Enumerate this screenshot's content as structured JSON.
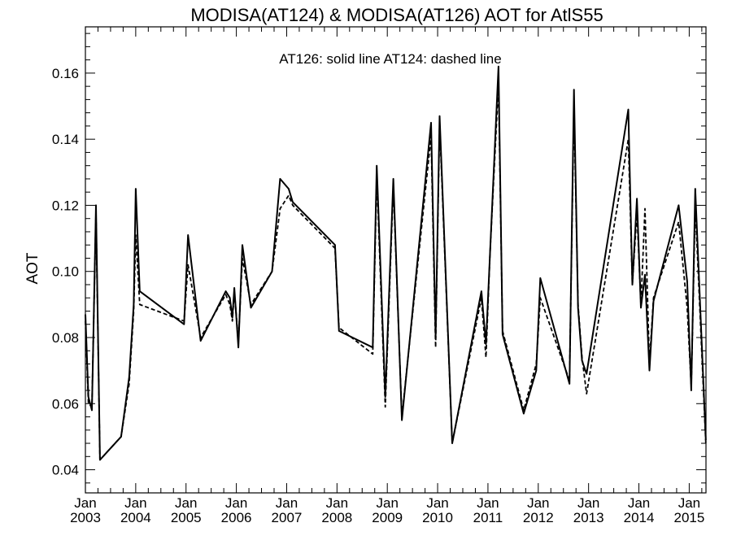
{
  "chart_data": {
    "type": "line",
    "title": "MODISA(AT124) & MODISA(AT126)  AOT for AtlS55",
    "annotation": "AT126: solid line   AT124: dashed line",
    "ylabel": "AOT",
    "xlabel": "",
    "xlim": [
      2003.0,
      2015.333
    ],
    "ylim": [
      0.033,
      0.174
    ],
    "yticks": [
      "0.04",
      "0.06",
      "0.08",
      "0.10",
      "0.12",
      "0.14",
      "0.16"
    ],
    "ytick_values": [
      0.04,
      0.06,
      0.08,
      0.1,
      0.12,
      0.14,
      0.16
    ],
    "xticks": [
      {
        "value": 2003,
        "month": "Jan",
        "year": "2003"
      },
      {
        "value": 2004,
        "month": "Jan",
        "year": "2004"
      },
      {
        "value": 2005,
        "month": "Jan",
        "year": "2005"
      },
      {
        "value": 2006,
        "month": "Jan",
        "year": "2006"
      },
      {
        "value": 2007,
        "month": "Jan",
        "year": "2007"
      },
      {
        "value": 2008,
        "month": "Jan",
        "year": "2008"
      },
      {
        "value": 2009,
        "month": "Jan",
        "year": "2009"
      },
      {
        "value": 2010,
        "month": "Jan",
        "year": "2010"
      },
      {
        "value": 2011,
        "month": "Jan",
        "year": "2011"
      },
      {
        "value": 2012,
        "month": "Jan",
        "year": "2012"
      },
      {
        "value": 2013,
        "month": "Jan",
        "year": "2013"
      },
      {
        "value": 2014,
        "month": "Jan",
        "year": "2014"
      },
      {
        "value": 2015,
        "month": "Jan",
        "year": "2015"
      }
    ],
    "grid": false,
    "series": [
      {
        "name": "AT126",
        "style": "solid",
        "color": "#000000",
        "points": [
          [
            2003.0,
            0.087
          ],
          [
            2003.06,
            0.062
          ],
          [
            2003.13,
            0.058
          ],
          [
            2003.21,
            0.12
          ],
          [
            2003.29,
            0.043
          ],
          [
            2003.71,
            0.05
          ],
          [
            2003.87,
            0.068
          ],
          [
            2003.96,
            0.09
          ],
          [
            2004.0,
            0.125
          ],
          [
            2004.08,
            0.094
          ],
          [
            2004.96,
            0.084
          ],
          [
            2005.04,
            0.111
          ],
          [
            2005.29,
            0.079
          ],
          [
            2005.79,
            0.094
          ],
          [
            2005.87,
            0.092
          ],
          [
            2005.92,
            0.086
          ],
          [
            2005.96,
            0.095
          ],
          [
            2006.04,
            0.077
          ],
          [
            2006.12,
            0.108
          ],
          [
            2006.29,
            0.089
          ],
          [
            2006.71,
            0.1
          ],
          [
            2006.87,
            0.128
          ],
          [
            2007.04,
            0.125
          ],
          [
            2007.12,
            0.121
          ],
          [
            2007.96,
            0.108
          ],
          [
            2008.04,
            0.082
          ],
          [
            2008.71,
            0.077
          ],
          [
            2008.79,
            0.132
          ],
          [
            2008.96,
            0.062
          ],
          [
            2009.12,
            0.128
          ],
          [
            2009.29,
            0.055
          ],
          [
            2009.87,
            0.145
          ],
          [
            2009.96,
            0.08
          ],
          [
            2010.04,
            0.147
          ],
          [
            2010.29,
            0.048
          ],
          [
            2010.87,
            0.094
          ],
          [
            2010.96,
            0.078
          ],
          [
            2011.04,
            0.105
          ],
          [
            2011.21,
            0.162
          ],
          [
            2011.29,
            0.081
          ],
          [
            2011.71,
            0.057
          ],
          [
            2011.96,
            0.07
          ],
          [
            2012.04,
            0.098
          ],
          [
            2012.62,
            0.066
          ],
          [
            2012.71,
            0.155
          ],
          [
            2012.79,
            0.089
          ],
          [
            2012.87,
            0.073
          ],
          [
            2012.96,
            0.069
          ],
          [
            2013.79,
            0.149
          ],
          [
            2013.87,
            0.096
          ],
          [
            2013.96,
            0.122
          ],
          [
            2014.04,
            0.089
          ],
          [
            2014.12,
            0.099
          ],
          [
            2014.21,
            0.07
          ],
          [
            2014.29,
            0.091
          ],
          [
            2014.79,
            0.12
          ],
          [
            2014.96,
            0.097
          ],
          [
            2015.04,
            0.064
          ],
          [
            2015.12,
            0.125
          ],
          [
            2015.33,
            0.049
          ]
        ]
      },
      {
        "name": "AT124",
        "style": "dashed",
        "color": "#000000",
        "points": [
          [
            2003.0,
            0.085
          ],
          [
            2003.06,
            0.06
          ],
          [
            2003.13,
            0.059
          ],
          [
            2003.21,
            0.118
          ],
          [
            2003.29,
            0.043
          ],
          [
            2003.71,
            0.05
          ],
          [
            2003.87,
            0.066
          ],
          [
            2003.96,
            0.088
          ],
          [
            2004.0,
            0.111
          ],
          [
            2004.08,
            0.09
          ],
          [
            2004.96,
            0.085
          ],
          [
            2005.04,
            0.102
          ],
          [
            2005.29,
            0.08
          ],
          [
            2005.79,
            0.093
          ],
          [
            2005.87,
            0.09
          ],
          [
            2005.92,
            0.085
          ],
          [
            2005.96,
            0.094
          ],
          [
            2006.04,
            0.079
          ],
          [
            2006.12,
            0.104
          ],
          [
            2006.29,
            0.09
          ],
          [
            2006.71,
            0.1
          ],
          [
            2006.87,
            0.119
          ],
          [
            2007.04,
            0.123
          ],
          [
            2007.12,
            0.12
          ],
          [
            2007.96,
            0.107
          ],
          [
            2008.04,
            0.083
          ],
          [
            2008.71,
            0.075
          ],
          [
            2008.79,
            0.129
          ],
          [
            2008.96,
            0.059
          ],
          [
            2009.12,
            0.126
          ],
          [
            2009.29,
            0.056
          ],
          [
            2009.87,
            0.141
          ],
          [
            2009.96,
            0.077
          ],
          [
            2010.04,
            0.145
          ],
          [
            2010.29,
            0.048
          ],
          [
            2010.87,
            0.092
          ],
          [
            2010.96,
            0.074
          ],
          [
            2011.04,
            0.105
          ],
          [
            2011.21,
            0.157
          ],
          [
            2011.29,
            0.082
          ],
          [
            2011.71,
            0.058
          ],
          [
            2011.96,
            0.072
          ],
          [
            2012.04,
            0.092
          ],
          [
            2012.62,
            0.067
          ],
          [
            2012.71,
            0.15
          ],
          [
            2012.79,
            0.09
          ],
          [
            2012.87,
            0.074
          ],
          [
            2012.96,
            0.063
          ],
          [
            2013.79,
            0.14
          ],
          [
            2013.87,
            0.096
          ],
          [
            2013.96,
            0.118
          ],
          [
            2014.04,
            0.09
          ],
          [
            2014.12,
            0.119
          ],
          [
            2014.21,
            0.072
          ],
          [
            2014.29,
            0.092
          ],
          [
            2014.79,
            0.115
          ],
          [
            2014.96,
            0.089
          ],
          [
            2015.04,
            0.065
          ],
          [
            2015.12,
            0.12
          ],
          [
            2015.33,
            0.048
          ]
        ]
      }
    ]
  }
}
